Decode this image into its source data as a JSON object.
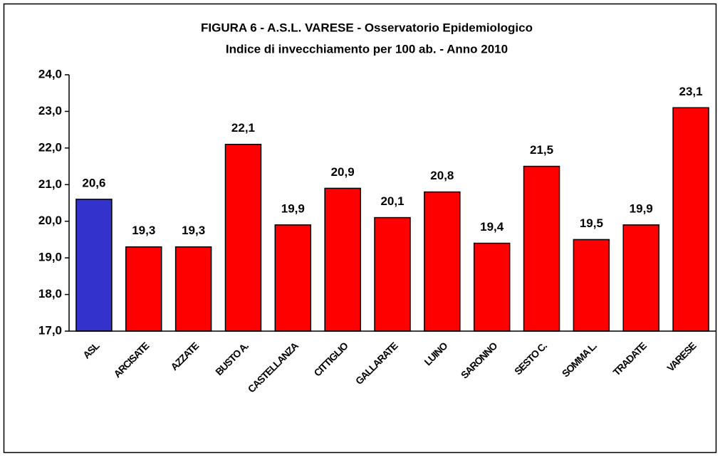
{
  "chart_data": {
    "type": "bar",
    "title": "FIGURA 6 -  A.S.L.  VARESE - Osservatorio Epidemiologico",
    "subtitle": "Indice di invecchiamento per 100 ab. - Anno 2010",
    "categories": [
      "ASL",
      "ARCISATE",
      "AZZATE",
      "BUSTO A.",
      "CASTELLANZA",
      "CITTIGLIO",
      "GALLARATE",
      "LUINO",
      "SARONNO",
      "SESTO C.",
      "SOMMA L.",
      "TRADATE",
      "VARESE"
    ],
    "values": [
      20.6,
      19.3,
      19.3,
      22.1,
      19.9,
      20.9,
      20.1,
      20.8,
      19.4,
      21.5,
      19.5,
      19.9,
      23.1
    ],
    "value_labels": [
      "20,6",
      "19,3",
      "19,3",
      "22,1",
      "19,9",
      "20,9",
      "20,1",
      "20,8",
      "19,4",
      "21,5",
      "19,5",
      "19,9",
      "23,1"
    ],
    "colors": [
      "#3333cc",
      "#ff0000",
      "#ff0000",
      "#ff0000",
      "#ff0000",
      "#ff0000",
      "#ff0000",
      "#ff0000",
      "#ff0000",
      "#ff0000",
      "#ff0000",
      "#ff0000",
      "#ff0000"
    ],
    "ylim": [
      17,
      24
    ],
    "yticks": [
      {
        "value": 17,
        "label": "17,0"
      },
      {
        "value": 18,
        "label": "18,0"
      },
      {
        "value": 19,
        "label": "19,0"
      },
      {
        "value": 20,
        "label": "20,0"
      },
      {
        "value": 21,
        "label": "21,0"
      },
      {
        "value": 22,
        "label": "22,0"
      },
      {
        "value": 23,
        "label": "23,0"
      },
      {
        "value": 24,
        "label": "24,0"
      }
    ],
    "grid": false
  }
}
